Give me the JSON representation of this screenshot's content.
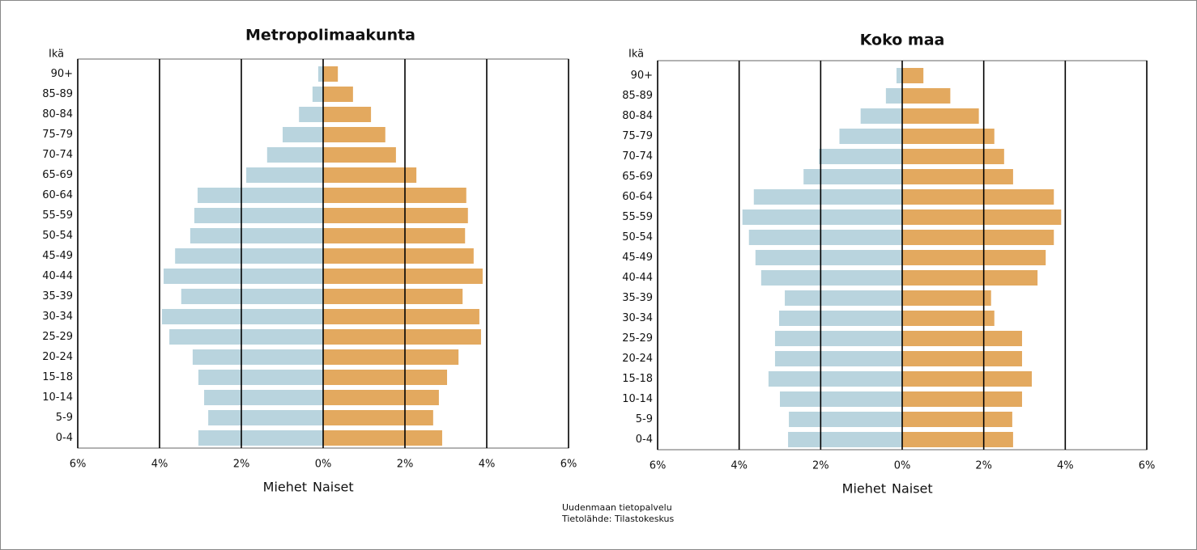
{
  "chart_data": [
    {
      "type": "bar",
      "orientation": "horizontal",
      "title": "Metropolimaakunta",
      "ylabel": "Ikä",
      "categories": [
        "90+",
        "85-89",
        "80-84",
        "75-79",
        "70-74",
        "65-69",
        "60-64",
        "55-59",
        "50-54",
        "45-49",
        "40-44",
        "35-39",
        "30-34",
        "25-29",
        "20-24",
        "15-18",
        "10-14",
        "5-9",
        "0-4"
      ],
      "series": [
        {
          "name": "Miehet",
          "color": "#b9d4de",
          "values": [
            -0.12,
            -0.26,
            -0.59,
            -0.99,
            -1.37,
            -1.88,
            -3.07,
            -3.15,
            -3.25,
            -3.62,
            -3.9,
            -3.47,
            -3.94,
            -3.76,
            -3.19,
            -3.05,
            -2.91,
            -2.81,
            -3.05
          ]
        },
        {
          "name": "Naiset",
          "color": "#e3a95f",
          "values": [
            0.36,
            0.73,
            1.17,
            1.52,
            1.78,
            2.28,
            3.5,
            3.54,
            3.47,
            3.68,
            3.9,
            3.41,
            3.82,
            3.86,
            3.31,
            3.03,
            2.83,
            2.69,
            2.91
          ]
        }
      ],
      "xlim": [
        -6,
        6
      ],
      "xticks": [
        {
          "value": -6,
          "label": "6%"
        },
        {
          "value": -4,
          "label": "4%"
        },
        {
          "value": -2,
          "label": "2%"
        },
        {
          "value": 0,
          "label": "0%"
        },
        {
          "value": 2,
          "label": "2%"
        },
        {
          "value": 4,
          "label": "4%"
        },
        {
          "value": 6,
          "label": "6%"
        }
      ],
      "grid": true
    },
    {
      "type": "bar",
      "orientation": "horizontal",
      "title": "Koko maa",
      "ylabel": "Ikä",
      "categories": [
        "90+",
        "85-89",
        "80-84",
        "75-79",
        "70-74",
        "65-69",
        "60-64",
        "55-59",
        "50-54",
        "45-49",
        "40-44",
        "35-39",
        "30-34",
        "25-29",
        "20-24",
        "15-18",
        "10-14",
        "5-9",
        "0-4"
      ],
      "series": [
        {
          "name": "Miehet",
          "color": "#b9d4de",
          "values": [
            -0.14,
            -0.4,
            -1.02,
            -1.54,
            -2.04,
            -2.42,
            -3.64,
            -3.92,
            -3.76,
            -3.6,
            -3.46,
            -2.88,
            -3.02,
            -3.12,
            -3.12,
            -3.28,
            -3.0,
            -2.78,
            -2.8
          ]
        },
        {
          "name": "Naiset",
          "color": "#e3a95f",
          "values": [
            0.52,
            1.18,
            1.88,
            2.26,
            2.5,
            2.72,
            3.72,
            3.9,
            3.72,
            3.52,
            3.32,
            2.18,
            2.26,
            2.94,
            2.94,
            3.18,
            2.94,
            2.7,
            2.72
          ]
        }
      ],
      "xlim": [
        -6,
        6
      ],
      "xticks": [
        {
          "value": -6,
          "label": "6%"
        },
        {
          "value": -4,
          "label": "4%"
        },
        {
          "value": -2,
          "label": "2%"
        },
        {
          "value": 0,
          "label": "0%"
        },
        {
          "value": 2,
          "label": "2%"
        },
        {
          "value": 4,
          "label": "4%"
        },
        {
          "value": 6,
          "label": "6%"
        }
      ],
      "grid": true
    }
  ],
  "source": [
    "Uudenmaan tietopalvelu",
    "Tietolähde: Tilastokeskus"
  ]
}
